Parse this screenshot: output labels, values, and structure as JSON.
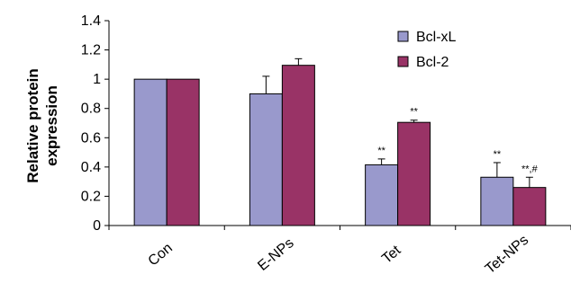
{
  "chart_data": {
    "type": "bar",
    "categories": [
      "Con",
      "E-NPs",
      "Tet",
      "Tet-NPs"
    ],
    "series": [
      {
        "name": "Bcl-xL",
        "values": [
          1.0,
          0.9,
          0.415,
          0.33
        ],
        "errors": [
          0,
          0.12,
          0.04,
          0.1
        ],
        "color": "#9999cc"
      },
      {
        "name": "Bcl-2",
        "values": [
          1.0,
          1.095,
          0.705,
          0.26
        ],
        "errors": [
          0,
          0.045,
          0.015,
          0.07
        ],
        "color": "#993366"
      }
    ],
    "annotations": [
      {
        "category": "Tet",
        "series": "Bcl-xL",
        "text": "**"
      },
      {
        "category": "Tet",
        "series": "Bcl-2",
        "text": "**"
      },
      {
        "category": "Tet-NPs",
        "series": "Bcl-xL",
        "text": "**"
      },
      {
        "category": "Tet-NPs",
        "series": "Bcl-2",
        "text": "**,#"
      }
    ],
    "ylabel_lines": [
      "Relative protein",
      "expression"
    ],
    "ylim": [
      0,
      1.4
    ],
    "yticks": [
      "0",
      "0.2",
      "0.4",
      "0.6",
      "0.8",
      "1",
      "1.2",
      "1.4"
    ],
    "ytick_values": [
      0,
      0.2,
      0.4,
      0.6,
      0.8,
      1,
      1.2,
      1.4
    ],
    "legend_position": "top-right",
    "grid": false
  }
}
